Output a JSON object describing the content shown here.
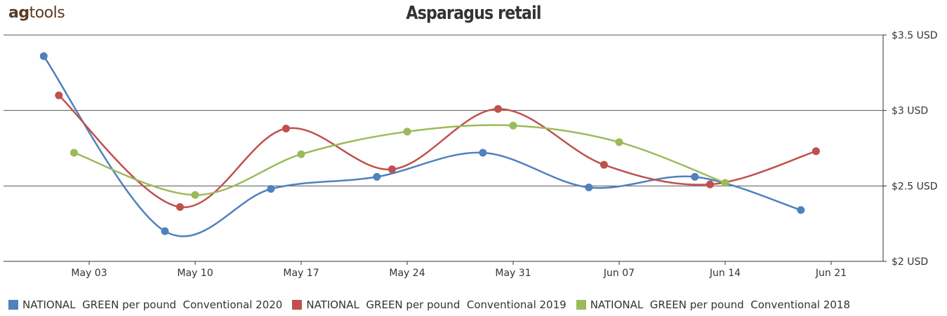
{
  "logo": {
    "part1": "ag",
    "part2": "tools"
  },
  "chart_data": {
    "type": "line",
    "title": "Asparagus retail",
    "xlabel": "",
    "ylabel": "",
    "x_ticks": [
      "May 03",
      "May 10",
      "May 17",
      "May 24",
      "May 31",
      "Jun 07",
      "Jun 14",
      "Jun 21"
    ],
    "y_ticks": [
      "$2 USD",
      "$2.5 USD",
      "$3 USD",
      "$3.5 USD"
    ],
    "ylim": [
      2,
      3.5
    ],
    "y_axis_position": "right",
    "grid": true,
    "legend_position": "bottom",
    "series": [
      {
        "name": "NATIONAL  GREEN per pound  Conventional 2020",
        "color": "#4f81bd",
        "x": [
          "Apr 30",
          "May 08",
          "May 15",
          "May 22",
          "May 29",
          "Jun 05",
          "Jun 12",
          "Jun 19"
        ],
        "values": [
          3.36,
          2.2,
          2.48,
          2.56,
          2.72,
          2.49,
          2.56,
          2.34
        ]
      },
      {
        "name": "NATIONAL  GREEN per pound  Conventional 2019",
        "color": "#c0504d",
        "x": [
          "May 01",
          "May 09",
          "May 16",
          "May 23",
          "May 30",
          "Jun 06",
          "Jun 13",
          "Jun 20"
        ],
        "values": [
          3.1,
          2.36,
          2.88,
          2.61,
          3.01,
          2.64,
          2.51,
          2.73
        ]
      },
      {
        "name": "NATIONAL  GREEN per pound  Conventional 2018",
        "color": "#9bbb59",
        "x": [
          "May 02",
          "May 10",
          "May 17",
          "May 24",
          "May 31",
          "Jun 07",
          "Jun 14"
        ],
        "values": [
          2.72,
          2.44,
          2.71,
          2.86,
          2.9,
          2.79,
          2.52
        ]
      }
    ]
  }
}
